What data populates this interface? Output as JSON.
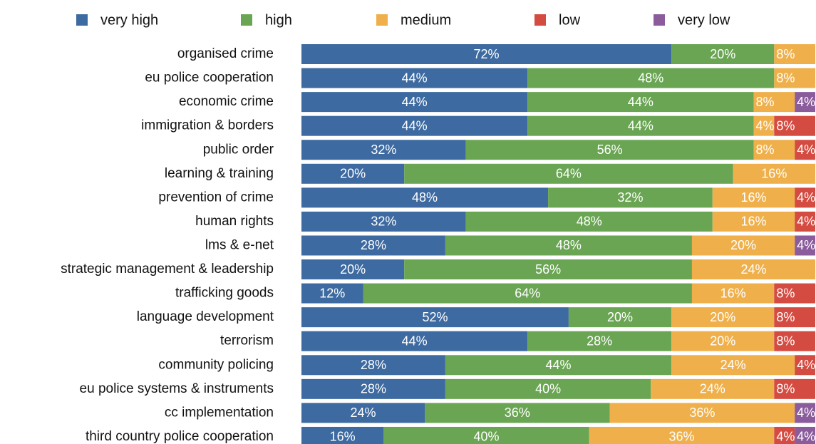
{
  "chart_data": {
    "type": "stacked-barh",
    "categories": [
      "organised crime",
      "eu police cooperation",
      "economic crime",
      "immigration & borders",
      "public order",
      "learning & training",
      "prevention of crime",
      "human rights",
      "lms & e-net",
      "strategic management & leadership",
      "trafficking goods",
      "language development",
      "terrorism",
      "community policing",
      "eu police systems & instruments",
      "cc implementation",
      "third country police cooperation"
    ],
    "xlim": [
      0,
      100
    ],
    "series": [
      {
        "name": "very high",
        "color": "#3d6aa0",
        "values": [
          72,
          44,
          44,
          44,
          32,
          20,
          48,
          32,
          28,
          20,
          12,
          52,
          44,
          28,
          28,
          24,
          16
        ],
        "value_labels": [
          "72%",
          "44%",
          "44%",
          "44%",
          "32%",
          "20%",
          "48%",
          "32%",
          "28%",
          "20%",
          "12%",
          "52%",
          "44%",
          "28%",
          "28%",
          "24%",
          "16%"
        ]
      },
      {
        "name": "high",
        "color": "#6aa553",
        "values": [
          20,
          48,
          44,
          44,
          56,
          64,
          32,
          48,
          48,
          56,
          64,
          20,
          28,
          44,
          40,
          36,
          40
        ],
        "value_labels": [
          "20%",
          "48%",
          "44%",
          "44%",
          "56%",
          "64%",
          "32%",
          "48%",
          "48%",
          "56%",
          "64%",
          "20%",
          "28%",
          "44%",
          "40%",
          "36%",
          "40%"
        ]
      },
      {
        "name": "medium",
        "color": "#efb04b",
        "values": [
          8,
          8,
          8,
          4,
          8,
          16,
          16,
          16,
          20,
          24,
          16,
          20,
          20,
          24,
          24,
          36,
          36
        ],
        "value_labels": [
          "8%",
          "8%",
          "8%",
          "4%",
          "8%",
          "16%",
          "16%",
          "16%",
          "20%",
          "24%",
          "16%",
          "20%",
          "20%",
          "24%",
          "24%",
          "36%",
          "36%"
        ]
      },
      {
        "name": "low",
        "color": "#d44b41",
        "values": [
          null,
          null,
          null,
          8,
          4,
          null,
          4,
          4,
          null,
          null,
          8,
          8,
          8,
          4,
          8,
          null,
          4
        ],
        "value_labels": [
          null,
          null,
          null,
          "8%",
          "4%",
          null,
          "4%",
          "4%",
          null,
          null,
          "8%",
          "8%",
          "8%",
          "4%",
          "8%",
          null,
          "4%"
        ]
      },
      {
        "name": "very low",
        "color": "#8b5c9c",
        "values": [
          null,
          null,
          4,
          null,
          null,
          null,
          null,
          null,
          4,
          null,
          null,
          null,
          null,
          null,
          null,
          4,
          4
        ],
        "value_labels": [
          null,
          null,
          "4%",
          null,
          null,
          null,
          null,
          null,
          "4%",
          null,
          null,
          null,
          null,
          null,
          null,
          "4%",
          "4%"
        ]
      }
    ]
  }
}
